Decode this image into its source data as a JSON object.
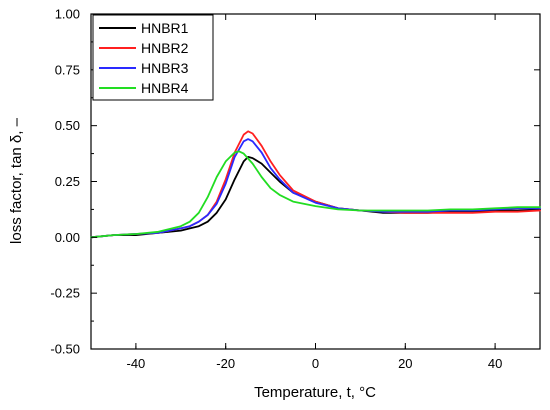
{
  "chart_data": {
    "type": "line",
    "xlabel": "Temperature, t, °C",
    "ylabel": "loss factor, tan δ, –",
    "xlim": [
      -50,
      50
    ],
    "ylim": [
      -0.5,
      1.0
    ],
    "x_ticks": [
      -40,
      -20,
      0,
      20,
      40
    ],
    "x_tick_labels": [
      "-40",
      "-20",
      "0",
      "20",
      "40"
    ],
    "y_ticks": [
      -0.5,
      -0.25,
      0.0,
      0.25,
      0.5,
      0.75,
      1.0
    ],
    "y_tick_labels": [
      "-0.50",
      "-0.25",
      "0.00",
      "0.25",
      "0.50",
      "0.75",
      "1.00"
    ],
    "grid": false,
    "legend_position": "top-left",
    "series": [
      {
        "name": "HNBR1",
        "color": "#000000",
        "x": [
          -50,
          -45,
          -40,
          -35,
          -30,
          -28,
          -26,
          -24,
          -22,
          -20,
          -18,
          -16,
          -15,
          -14,
          -12,
          -10,
          -8,
          -5,
          0,
          5,
          10,
          15,
          20,
          25,
          30,
          35,
          40,
          45,
          50
        ],
        "y": [
          0.0,
          0.01,
          0.01,
          0.02,
          0.03,
          0.04,
          0.05,
          0.07,
          0.11,
          0.17,
          0.26,
          0.34,
          0.36,
          0.355,
          0.33,
          0.29,
          0.25,
          0.2,
          0.16,
          0.13,
          0.12,
          0.11,
          0.11,
          0.11,
          0.115,
          0.115,
          0.12,
          0.12,
          0.125
        ]
      },
      {
        "name": "HNBR2",
        "color": "#ff2020",
        "x": [
          -50,
          -45,
          -40,
          -35,
          -30,
          -28,
          -26,
          -24,
          -22,
          -20,
          -18,
          -16,
          -15,
          -14,
          -12,
          -10,
          -8,
          -5,
          0,
          5,
          10,
          15,
          20,
          25,
          30,
          35,
          40,
          45,
          50
        ],
        "y": [
          0.0,
          0.01,
          0.015,
          0.02,
          0.04,
          0.05,
          0.07,
          0.1,
          0.16,
          0.26,
          0.38,
          0.46,
          0.475,
          0.465,
          0.41,
          0.34,
          0.28,
          0.21,
          0.16,
          0.13,
          0.12,
          0.115,
          0.11,
          0.11,
          0.11,
          0.11,
          0.115,
          0.115,
          0.12
        ]
      },
      {
        "name": "HNBR3",
        "color": "#2a2aff",
        "x": [
          -50,
          -45,
          -40,
          -35,
          -30,
          -28,
          -26,
          -24,
          -22,
          -20,
          -18,
          -16,
          -15,
          -14,
          -12,
          -10,
          -8,
          -5,
          0,
          5,
          10,
          15,
          20,
          25,
          30,
          35,
          40,
          45,
          50
        ],
        "y": [
          0.0,
          0.01,
          0.015,
          0.02,
          0.04,
          0.05,
          0.07,
          0.1,
          0.15,
          0.24,
          0.36,
          0.43,
          0.44,
          0.43,
          0.38,
          0.31,
          0.26,
          0.2,
          0.155,
          0.13,
          0.12,
          0.115,
          0.115,
          0.115,
          0.12,
          0.12,
          0.125,
          0.13,
          0.13
        ]
      },
      {
        "name": "HNBR4",
        "color": "#22dd22",
        "x": [
          -50,
          -45,
          -40,
          -35,
          -30,
          -28,
          -26,
          -24,
          -22,
          -20,
          -18,
          -17,
          -16,
          -14,
          -12,
          -10,
          -8,
          -5,
          0,
          5,
          10,
          15,
          20,
          25,
          30,
          35,
          40,
          45,
          50
        ],
        "y": [
          0.0,
          0.01,
          0.015,
          0.025,
          0.05,
          0.07,
          0.11,
          0.18,
          0.27,
          0.34,
          0.38,
          0.385,
          0.375,
          0.33,
          0.27,
          0.22,
          0.19,
          0.16,
          0.14,
          0.125,
          0.12,
          0.12,
          0.12,
          0.12,
          0.125,
          0.125,
          0.13,
          0.135,
          0.135
        ]
      }
    ]
  }
}
